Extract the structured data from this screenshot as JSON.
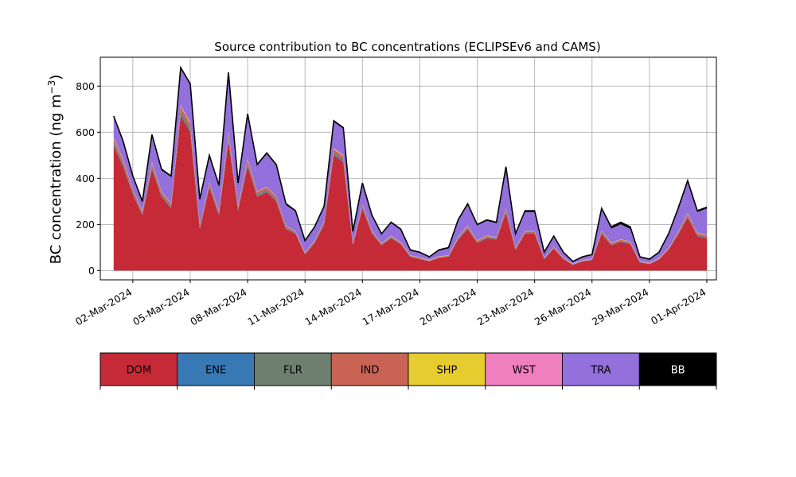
{
  "chart_data": {
    "type": "area",
    "stacked": true,
    "title": "Source contribution to BC concentrations (ECLIPSEv6 and CAMS)",
    "xlabel": "",
    "ylabel_prefix": "BC concentration (ng m",
    "ylabel_sup": "−3",
    "ylabel_suffix": ")",
    "x_unit": "day of March 2024",
    "xlim": [
      0.3,
      32.5
    ],
    "ylim": [
      -40,
      925
    ],
    "grid": true,
    "yticks": [
      0,
      200,
      400,
      600,
      800
    ],
    "ytick_labels": [
      "0",
      "200",
      "400",
      "600",
      "800"
    ],
    "xticks": [
      2,
      5,
      8,
      11,
      14,
      17,
      20,
      23,
      26,
      29,
      32
    ],
    "xtick_labels": [
      "02-Mar-2024",
      "05-Mar-2024",
      "08-Mar-2024",
      "11-Mar-2024",
      "14-Mar-2024",
      "17-Mar-2024",
      "20-Mar-2024",
      "23-Mar-2024",
      "26-Mar-2024",
      "29-Mar-2024",
      "01-Apr-2024"
    ],
    "x": [
      1.0,
      1.5,
      2.0,
      2.5,
      3.0,
      3.5,
      4.0,
      4.5,
      5.0,
      5.5,
      6.0,
      6.5,
      7.0,
      7.5,
      8.0,
      8.5,
      9.0,
      9.5,
      10.0,
      10.5,
      11.0,
      11.5,
      12.0,
      12.5,
      13.0,
      13.5,
      14.0,
      14.5,
      15.0,
      15.5,
      16.0,
      16.5,
      17.0,
      17.5,
      18.0,
      18.5,
      19.0,
      19.5,
      20.0,
      20.5,
      21.0,
      21.5,
      22.0,
      22.5,
      23.0,
      23.5,
      24.0,
      24.5,
      25.0,
      25.5,
      26.0,
      26.5,
      27.0,
      27.5,
      28.0,
      28.5,
      29.0,
      29.5,
      30.0,
      30.5,
      31.0,
      31.5,
      32.0
    ],
    "total": [
      670,
      560,
      410,
      300,
      590,
      440,
      410,
      880,
      810,
      310,
      500,
      370,
      860,
      380,
      680,
      460,
      510,
      460,
      290,
      260,
      130,
      190,
      280,
      650,
      620,
      170,
      380,
      240,
      160,
      210,
      180,
      90,
      80,
      60,
      90,
      100,
      220,
      290,
      200,
      220,
      210,
      450,
      160,
      260,
      260,
      80,
      150,
      80,
      40,
      60,
      70,
      270,
      190,
      210,
      190,
      60,
      50,
      80,
      160,
      270,
      390,
      260,
      275
    ],
    "series": [
      {
        "name": "DOM",
        "color": "#c62a37",
        "values": [
          540,
          450,
          330,
          240,
          440,
          320,
          270,
          670,
          600,
          180,
          360,
          240,
          560,
          260,
          450,
          320,
          340,
          300,
          180,
          160,
          70,
          120,
          200,
          500,
          470,
          110,
          270,
          160,
          110,
          140,
          115,
          60,
          50,
          40,
          55,
          60,
          135,
          180,
          120,
          140,
          135,
          250,
          90,
          160,
          160,
          50,
          95,
          50,
          25,
          40,
          45,
          160,
          110,
          125,
          115,
          35,
          28,
          48,
          90,
          155,
          230,
          150,
          140
        ]
      },
      {
        "name": "ENE",
        "color": "#3878b4",
        "values": [
          5,
          4,
          3,
          2,
          4,
          3,
          3,
          6,
          5,
          2,
          3,
          2,
          5,
          2,
          4,
          3,
          3,
          3,
          2,
          2,
          1,
          1,
          2,
          4,
          4,
          1,
          2,
          2,
          1,
          1,
          1,
          1,
          1,
          1,
          1,
          1,
          1,
          2,
          1,
          1,
          1,
          2,
          1,
          1,
          1,
          1,
          1,
          1,
          1,
          1,
          1,
          1,
          1,
          1,
          1,
          1,
          1,
          1,
          1,
          1,
          2,
          1,
          1
        ]
      },
      {
        "name": "FLR",
        "color": "#6f7f6f",
        "values": [
          12,
          10,
          8,
          6,
          10,
          8,
          7,
          15,
          14,
          6,
          8,
          6,
          14,
          7,
          11,
          8,
          8,
          7,
          5,
          4,
          3,
          4,
          5,
          10,
          10,
          3,
          6,
          4,
          3,
          4,
          3,
          2,
          2,
          1,
          2,
          2,
          4,
          5,
          4,
          4,
          4,
          7,
          3,
          4,
          4,
          2,
          3,
          2,
          1,
          1,
          2,
          5,
          4,
          4,
          4,
          2,
          1,
          2,
          3,
          5,
          7,
          5,
          6
        ]
      },
      {
        "name": "IND",
        "color": "#c96455",
        "values": [
          15,
          12,
          10,
          8,
          12,
          10,
          9,
          20,
          18,
          8,
          11,
          8,
          18,
          9,
          14,
          10,
          10,
          9,
          6,
          5,
          3,
          4,
          6,
          12,
          12,
          4,
          7,
          5,
          3,
          4,
          3,
          2,
          2,
          2,
          2,
          2,
          4,
          6,
          4,
          5,
          4,
          8,
          3,
          5,
          5,
          2,
          3,
          2,
          1,
          1,
          2,
          6,
          4,
          4,
          4,
          2,
          1,
          2,
          3,
          5,
          8,
          6,
          6
        ]
      },
      {
        "name": "SHP",
        "color": "#e6cc2e",
        "values": [
          2,
          2,
          1,
          1,
          2,
          1,
          1,
          2,
          2,
          1,
          1,
          1,
          2,
          1,
          2,
          1,
          1,
          1,
          1,
          1,
          1,
          1,
          1,
          2,
          2,
          1,
          1,
          1,
          1,
          1,
          1,
          1,
          1,
          1,
          1,
          1,
          1,
          1,
          1,
          1,
          1,
          1,
          1,
          1,
          1,
          1,
          1,
          1,
          1,
          1,
          1,
          1,
          1,
          1,
          1,
          1,
          1,
          1,
          1,
          1,
          1,
          1,
          1
        ]
      },
      {
        "name": "WST",
        "color": "#f07fbf",
        "values": [
          3,
          3,
          2,
          2,
          3,
          2,
          2,
          4,
          4,
          2,
          2,
          2,
          4,
          2,
          3,
          2,
          2,
          2,
          1,
          1,
          1,
          1,
          1,
          3,
          3,
          1,
          2,
          1,
          1,
          1,
          1,
          1,
          1,
          1,
          1,
          1,
          1,
          2,
          1,
          1,
          1,
          2,
          1,
          1,
          1,
          1,
          1,
          1,
          1,
          1,
          1,
          1,
          1,
          1,
          1,
          1,
          1,
          1,
          1,
          1,
          2,
          1,
          1
        ]
      },
      {
        "name": "TRA",
        "color": "#9370db",
        "values": [
          88,
          74,
          51,
          37,
          114,
          91,
          114,
          158,
          162,
          106,
          109,
          106,
          251,
          94,
          186,
          111,
          141,
          133,
          90,
          83,
          48,
          56,
          61,
          114,
          114,
          46,
          87,
          63,
          37,
          55,
          52,
          19,
          19,
          11,
          24,
          29,
          70,
          88,
          65,
          64,
          61,
          173,
          57,
          82,
          82,
          20,
          42,
          19,
          8,
          12,
          15,
          91,
          61,
          65,
          55,
          15,
          13,
          21,
          56,
          94,
          134,
          90,
          114
        ]
      },
      {
        "name": "BB",
        "color": "#000000",
        "values": [
          5,
          5,
          5,
          4,
          5,
          5,
          4,
          5,
          5,
          5,
          6,
          5,
          6,
          5,
          6,
          5,
          5,
          5,
          5,
          4,
          3,
          4,
          5,
          5,
          5,
          4,
          5,
          4,
          4,
          4,
          4,
          4,
          4,
          3,
          4,
          4,
          4,
          6,
          4,
          4,
          4,
          7,
          4,
          6,
          6,
          3,
          4,
          4,
          2,
          3,
          3,
          5,
          8,
          9,
          9,
          3,
          4,
          4,
          5,
          8,
          6,
          6,
          6
        ]
      }
    ],
    "legend_position": "below"
  },
  "legend": {
    "items": [
      {
        "label": "DOM",
        "color": "#c62a37",
        "text_color": "#000000"
      },
      {
        "label": "ENE",
        "color": "#3878b4",
        "text_color": "#000000"
      },
      {
        "label": "FLR",
        "color": "#6f7f6f",
        "text_color": "#000000"
      },
      {
        "label": "IND",
        "color": "#c96455",
        "text_color": "#000000"
      },
      {
        "label": "SHP",
        "color": "#e6cc2e",
        "text_color": "#000000"
      },
      {
        "label": "WST",
        "color": "#f07fbf",
        "text_color": "#000000"
      },
      {
        "label": "TRA",
        "color": "#9370db",
        "text_color": "#000000"
      },
      {
        "label": "BB",
        "color": "#000000",
        "text_color": "#ffffff"
      }
    ]
  }
}
